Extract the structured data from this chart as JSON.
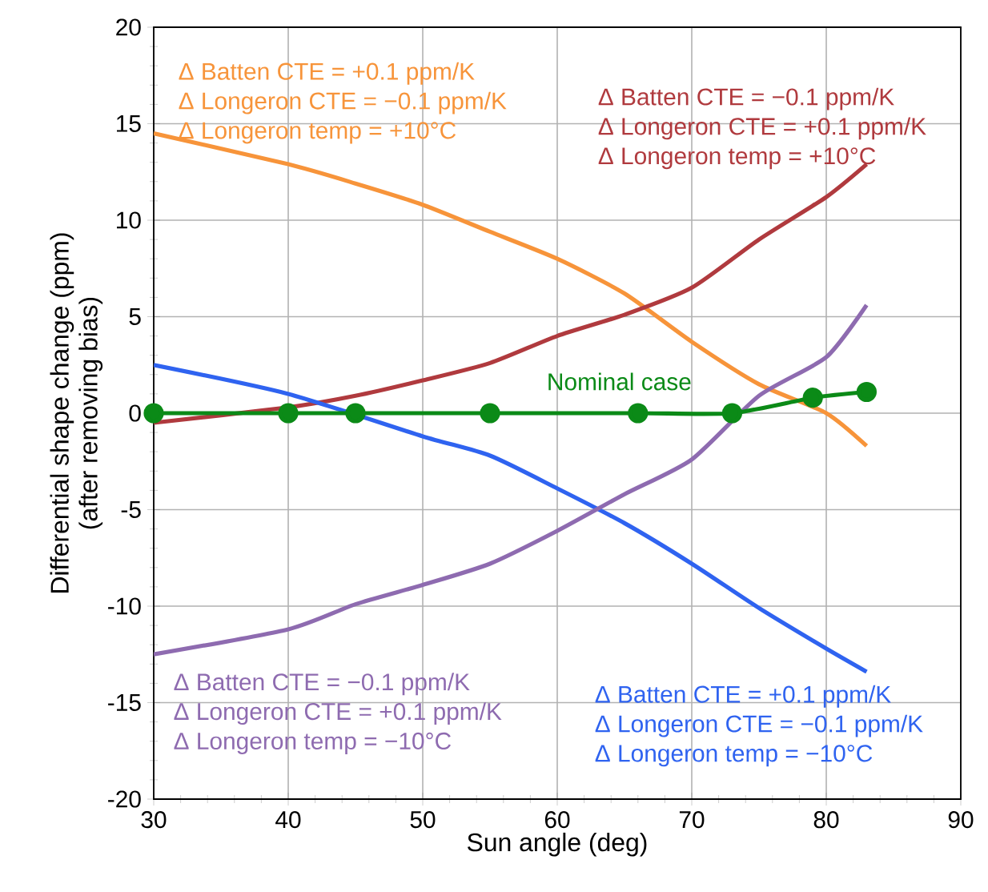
{
  "chart_data": {
    "type": "line",
    "xlabel": "Sun angle (deg)",
    "ylabel": "Differential shape change (ppm)\n(after removing bias)",
    "xlim": [
      30,
      90
    ],
    "xticks": [
      30,
      40,
      50,
      60,
      70,
      80,
      90
    ],
    "ylim": [
      -20,
      20
    ],
    "yticks": [
      -20,
      -15,
      -10,
      -5,
      0,
      5,
      10,
      15,
      20
    ],
    "grid": true,
    "line_style": "solid",
    "x": [
      30,
      40,
      45,
      50,
      55,
      60,
      65,
      70,
      75,
      80,
      83
    ],
    "series": [
      {
        "color": "#f7943a",
        "values": [
          14.5,
          12.9,
          11.9,
          10.8,
          9.4,
          8.0,
          6.2,
          3.7,
          1.5,
          0.0,
          -1.7
        ]
      },
      {
        "color": "#b03a3e",
        "values": [
          -0.5,
          0.3,
          0.9,
          1.7,
          2.6,
          4.0,
          5.1,
          6.5,
          9.0,
          11.2,
          12.9
        ]
      },
      {
        "color": "#2f63f0",
        "x": [
          30,
          40,
          50,
          55,
          60,
          65,
          70,
          75,
          80,
          83
        ],
        "values": [
          2.5,
          1.0,
          -1.2,
          -2.2,
          -3.9,
          -5.7,
          -7.8,
          -10.1,
          -12.2,
          -13.4
        ]
      },
      {
        "color": "#8e6bb0",
        "values": [
          -12.5,
          -11.2,
          -9.9,
          -8.9,
          -7.8,
          -6.1,
          -4.2,
          -2.4,
          0.9,
          2.9,
          5.6
        ]
      },
      {
        "name": "Nominal case",
        "color": "#0b8a17",
        "marker": "circle",
        "x": [
          30,
          40,
          45,
          55,
          66,
          73,
          79,
          83
        ],
        "values": [
          0,
          0,
          0,
          0,
          0,
          0,
          0.8,
          1.1
        ]
      }
    ],
    "annotations": [
      "Δ Batten CTE = +0.1 ppm/K",
      "Δ Longeron CTE = −0.1 ppm/K",
      "Δ Longeron temp = +10°C",
      "Δ Batten CTE = −0.1 ppm/K",
      "Δ Longeron CTE = +0.1 ppm/K",
      "Δ Longeron temp = +10°C",
      "Δ Batten CTE = −0.1 ppm/K",
      "Δ Longeron CTE = +0.1 ppm/K",
      "Δ Longeron temp = −10°C",
      "Δ Batten CTE = +0.1 ppm/K",
      "Δ Longeron CTE = −0.1 ppm/K",
      "Δ Longeron temp = −10°C"
    ]
  }
}
